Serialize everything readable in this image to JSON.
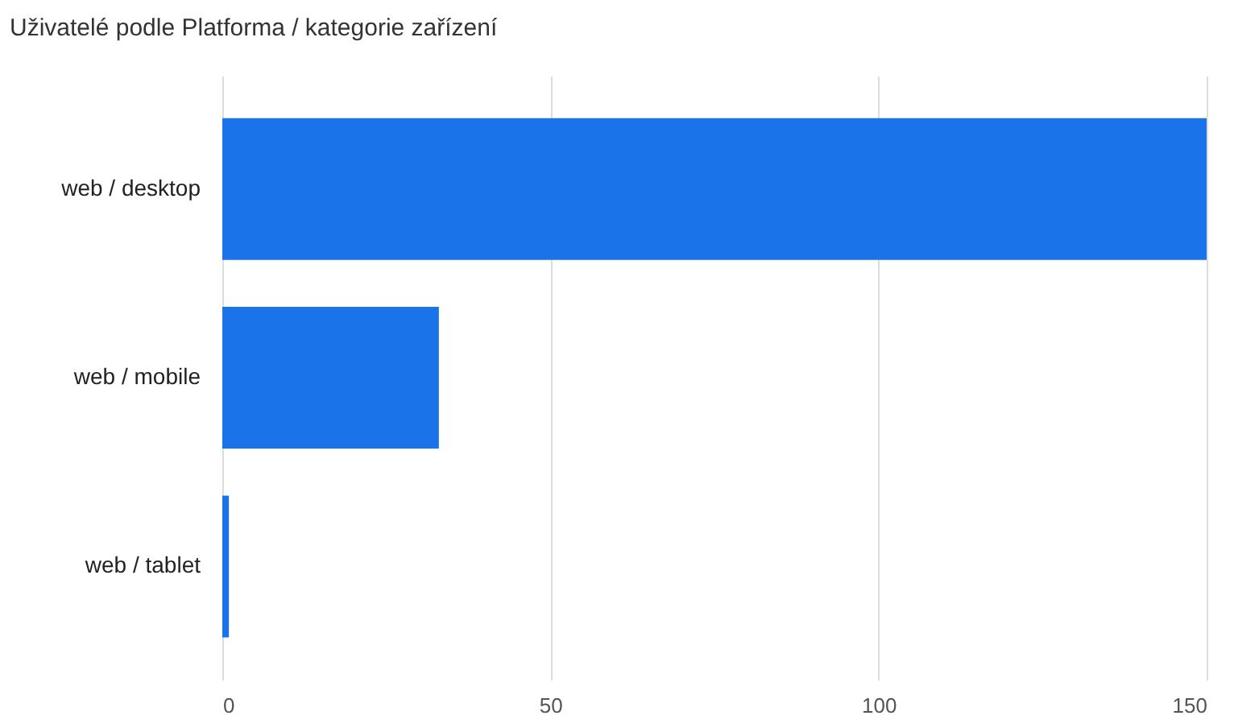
{
  "chart_data": {
    "type": "bar",
    "orientation": "horizontal",
    "title": "Uživatelé podle Platforma / kategorie zařízení",
    "categories": [
      "web / desktop",
      "web / mobile",
      "web / tablet"
    ],
    "values": [
      150,
      33,
      1
    ],
    "color": "#1a73e8",
    "xlim": [
      0,
      150
    ],
    "xticks": [
      0,
      50,
      100,
      150
    ],
    "grid": "x"
  }
}
